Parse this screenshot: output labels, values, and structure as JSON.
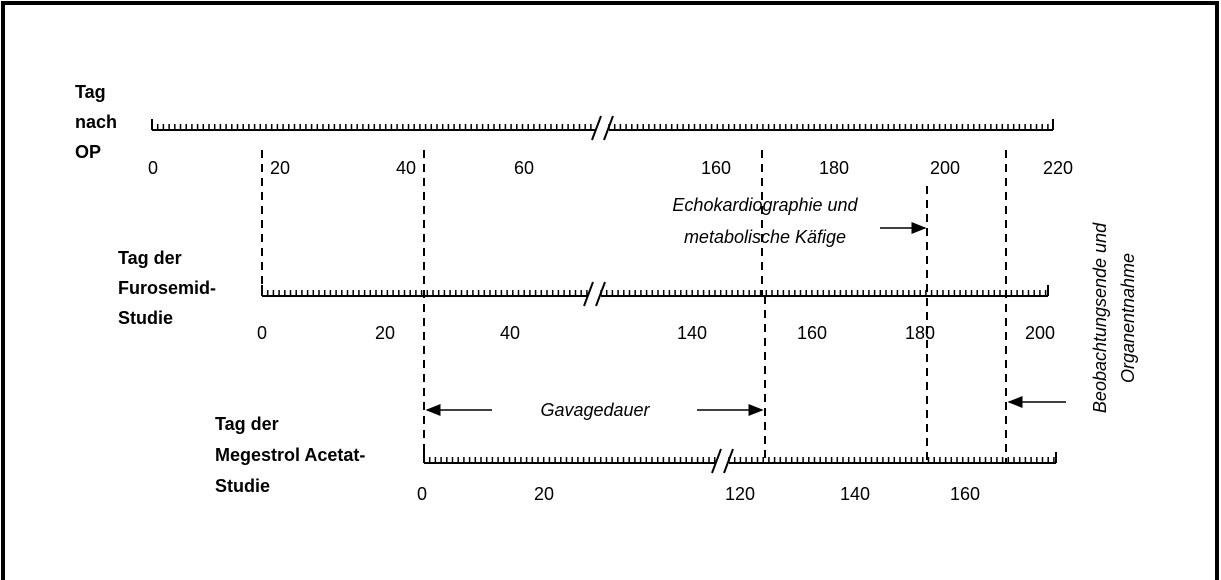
{
  "timelines": [
    {
      "label": [
        "Tag",
        "nach",
        "OP"
      ],
      "ticks": [
        "0",
        "20",
        "40",
        "60",
        "160",
        "180",
        "200",
        "220"
      ]
    },
    {
      "label": [
        "Tag der",
        "Furosemid-",
        "Studie"
      ],
      "ticks": [
        "0",
        "20",
        "40",
        "140",
        "160",
        "180",
        "200"
      ]
    },
    {
      "label": [
        "Tag der",
        "Megestrol Acetat-",
        "Studie"
      ],
      "ticks": [
        "0",
        "20",
        "120",
        "140",
        "160"
      ]
    }
  ],
  "annotations": {
    "echo": [
      "Echokardiographie und",
      "metabolische Käfige"
    ],
    "gavage": "Gavagedauer",
    "end": [
      "Beobachtungsende und",
      "Organentnahme"
    ]
  }
}
